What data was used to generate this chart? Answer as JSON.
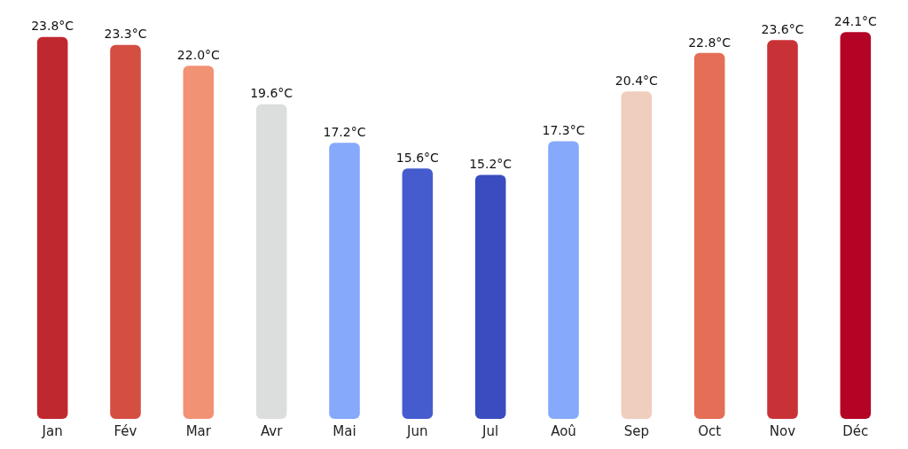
{
  "chart_data": {
    "type": "bar",
    "categories": [
      "Jan",
      "Fév",
      "Mar",
      "Avr",
      "Mai",
      "Jun",
      "Jul",
      "Aoû",
      "Sep",
      "Oct",
      "Nov",
      "Déc"
    ],
    "values": [
      23.8,
      23.3,
      22.0,
      19.6,
      17.2,
      15.6,
      15.2,
      17.3,
      20.4,
      22.8,
      23.6,
      24.1
    ],
    "value_labels": [
      "23.8°C",
      "23.3°C",
      "22.0°C",
      "19.6°C",
      "17.2°C",
      "15.6°C",
      "15.2°C",
      "17.3°C",
      "20.4°C",
      "22.8°C",
      "23.6°C",
      "24.1°C"
    ],
    "colors": [
      "#c0282f",
      "#d44e41",
      "#f29274",
      "#dcdddd",
      "#86a9fc",
      "#455cce",
      "#3b4cc0",
      "#86a9fc",
      "#efcebd",
      "#e46e56",
      "#c83236",
      "#b40426"
    ],
    "tick_labels": "x"
  }
}
